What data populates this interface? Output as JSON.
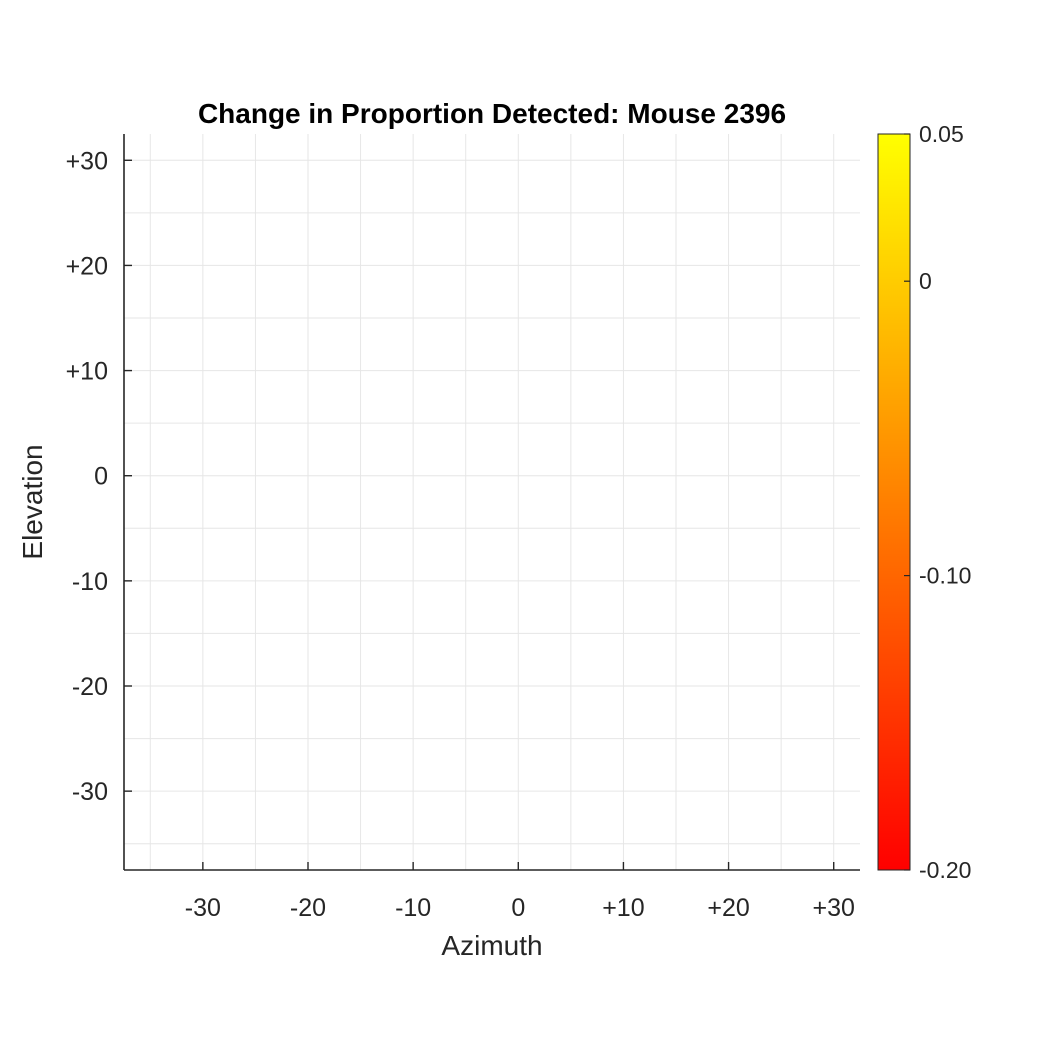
{
  "chart_data": {
    "type": "heatmap",
    "title": "Change in Proportion Detected: Mouse 2396",
    "xlabel": "Azimuth",
    "ylabel": "Elevation",
    "xlim": [
      -37.5,
      32.5
    ],
    "ylim": [
      -37.5,
      32.5
    ],
    "x_ticks": [
      -30,
      -20,
      -10,
      0,
      10,
      20,
      30
    ],
    "x_tick_labels": [
      "-30",
      "-20",
      "-10",
      "0",
      "+10",
      "+20",
      "+30"
    ],
    "y_ticks": [
      30,
      20,
      10,
      0,
      -10,
      -20,
      -30
    ],
    "y_tick_labels": [
      "+30",
      "+20",
      "+10",
      "0",
      "-10",
      "-20",
      "-30"
    ],
    "grid": true,
    "cells": [],
    "colorbar": {
      "range": [
        -0.2,
        0.05
      ],
      "ticks": [
        0.05,
        0,
        -0.1,
        -0.2
      ],
      "tick_labels": [
        "0.05",
        "0",
        "-0.10",
        "-0.20"
      ],
      "colormap": "autumn",
      "color_low": "#ff0000",
      "color_high": "#ffff00"
    }
  }
}
